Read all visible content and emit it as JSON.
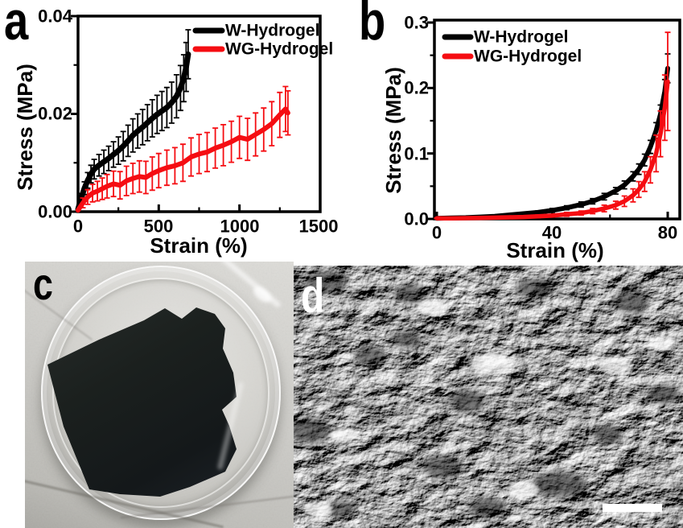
{
  "panels": {
    "a": {
      "label": "a"
    },
    "b": {
      "label": "b"
    },
    "c": {
      "label": "c",
      "content": "photo-black-hydrogel-film-in-petri-dish"
    },
    "d": {
      "label": "d",
      "content": "sem-micrograph-with-scale-bar"
    }
  },
  "colors": {
    "series_black": "#000000",
    "series_red": "#f50d12",
    "frame": "#000000",
    "scale_bar": "#ffffff"
  },
  "chart_data": [
    {
      "id": "a",
      "type": "line",
      "title": "",
      "xlabel": "Strain (%)",
      "ylabel": "Stress (MPa)",
      "xlim": [
        0,
        1500
      ],
      "ylim": [
        0,
        0.04
      ],
      "grid": false,
      "legend_position": "top-right",
      "xticks": {
        "labels": [
          "0",
          "500",
          "1000",
          "1500"
        ],
        "major": [
          0,
          500,
          1000,
          1500
        ],
        "minor": [
          250,
          750,
          1250
        ]
      },
      "yticks": {
        "labels": [
          "0.00",
          "0.02",
          "0.04"
        ],
        "major": [
          0,
          0.02,
          0.04
        ],
        "minor": [
          0.01,
          0.03
        ]
      },
      "series": [
        {
          "name": "W-Hydrogel",
          "color": "#000000",
          "x": [
            0,
            20,
            40,
            60,
            80,
            100,
            130,
            160,
            190,
            220,
            250,
            280,
            310,
            340,
            370,
            400,
            430,
            460,
            490,
            520,
            550,
            580,
            610,
            635,
            655,
            670,
            682
          ],
          "y": [
            0.0005,
            0.0028,
            0.0048,
            0.0064,
            0.0077,
            0.0087,
            0.0095,
            0.0102,
            0.0109,
            0.0117,
            0.0125,
            0.0134,
            0.0145,
            0.0156,
            0.0165,
            0.0173,
            0.0182,
            0.0191,
            0.0199,
            0.0206,
            0.0213,
            0.0223,
            0.0236,
            0.0253,
            0.0273,
            0.0296,
            0.0322
          ],
          "err": [
            0,
            0.0009,
            0.0013,
            0.0016,
            0.0018,
            0.002,
            0.0022,
            0.0024,
            0.0025,
            0.0026,
            0.0028,
            0.003,
            0.0032,
            0.0034,
            0.0035,
            0.0036,
            0.0037,
            0.0038,
            0.0039,
            0.004,
            0.0041,
            0.0042,
            0.0044,
            0.0046,
            0.0048,
            0.005,
            0.005
          ]
        },
        {
          "name": "WG-Hydrogel",
          "color": "#f50d12",
          "x": [
            0,
            30,
            60,
            90,
            120,
            150,
            180,
            220,
            260,
            300,
            340,
            380,
            420,
            460,
            500,
            550,
            600,
            650,
            700,
            750,
            800,
            850,
            900,
            950,
            1000,
            1050,
            1100,
            1150,
            1200,
            1250,
            1285,
            1300
          ],
          "y": [
            0.0003,
            0.0018,
            0.003,
            0.0038,
            0.0042,
            0.0047,
            0.0052,
            0.0057,
            0.0054,
            0.0063,
            0.0068,
            0.0072,
            0.007,
            0.0078,
            0.0084,
            0.009,
            0.0094,
            0.01,
            0.0112,
            0.0118,
            0.0122,
            0.013,
            0.0136,
            0.0143,
            0.0152,
            0.0148,
            0.0158,
            0.0168,
            0.018,
            0.0198,
            0.021,
            0.0202
          ],
          "err": [
            0,
            0.001,
            0.0015,
            0.0018,
            0.002,
            0.0022,
            0.0024,
            0.0026,
            0.0028,
            0.003,
            0.0031,
            0.0032,
            0.0033,
            0.0034,
            0.0035,
            0.0036,
            0.0037,
            0.0038,
            0.0039,
            0.004,
            0.004,
            0.0041,
            0.0042,
            0.0042,
            0.0043,
            0.0043,
            0.0044,
            0.0044,
            0.0045,
            0.0046,
            0.0046,
            0.0045
          ]
        }
      ]
    },
    {
      "id": "b",
      "type": "line",
      "title": "",
      "xlabel": "Strain (%)",
      "ylabel": "Stress (MPa)",
      "xlim": [
        0,
        80
      ],
      "ylim": [
        0,
        0.3
      ],
      "grid": false,
      "legend_position": "top-left",
      "xticks": {
        "labels": [
          "0",
          "40",
          "80"
        ],
        "major": [
          0,
          40,
          80
        ],
        "minor": [
          20,
          60
        ]
      },
      "yticks": {
        "labels": [
          "0.0",
          "0.1",
          "0.2",
          "0.3"
        ],
        "major": [
          0,
          0.1,
          0.2,
          0.3
        ],
        "minor": [
          0.05,
          0.15,
          0.25
        ]
      },
      "series": [
        {
          "name": "W-Hydrogel",
          "color": "#000000",
          "x": [
            0,
            5,
            10,
            15,
            20,
            25,
            30,
            35,
            40,
            45,
            50,
            54,
            58,
            62,
            65,
            68,
            70,
            72,
            74,
            76,
            77.5,
            79,
            80
          ],
          "y": [
            0.001,
            0.0015,
            0.002,
            0.003,
            0.004,
            0.006,
            0.008,
            0.01,
            0.013,
            0.017,
            0.022,
            0.027,
            0.034,
            0.043,
            0.052,
            0.065,
            0.076,
            0.09,
            0.11,
            0.135,
            0.16,
            0.195,
            0.23
          ],
          "err": [
            0.0005,
            0.0005,
            0.001,
            0.001,
            0.001,
            0.0015,
            0.002,
            0.002,
            0.003,
            0.003,
            0.004,
            0.004,
            0.005,
            0.005,
            0.006,
            0.007,
            0.008,
            0.009,
            0.01,
            0.012,
            0.014,
            0.018,
            0.022
          ]
        },
        {
          "name": "WG-Hydrogel",
          "color": "#f50d12",
          "x": [
            0,
            5,
            10,
            15,
            20,
            25,
            30,
            35,
            40,
            45,
            50,
            54,
            58,
            62,
            65,
            68,
            70,
            72,
            74,
            76,
            77.5,
            79,
            80
          ],
          "y": [
            0.001,
            0.001,
            0.0012,
            0.0015,
            0.002,
            0.0025,
            0.003,
            0.004,
            0.005,
            0.007,
            0.009,
            0.012,
            0.016,
            0.021,
            0.027,
            0.036,
            0.045,
            0.057,
            0.075,
            0.1,
            0.13,
            0.17,
            0.21
          ],
          "err": [
            0.0005,
            0.0005,
            0.001,
            0.001,
            0.001,
            0.001,
            0.0015,
            0.002,
            0.002,
            0.003,
            0.003,
            0.004,
            0.005,
            0.006,
            0.008,
            0.01,
            0.012,
            0.015,
            0.02,
            0.028,
            0.035,
            0.05,
            0.075
          ]
        }
      ]
    }
  ]
}
